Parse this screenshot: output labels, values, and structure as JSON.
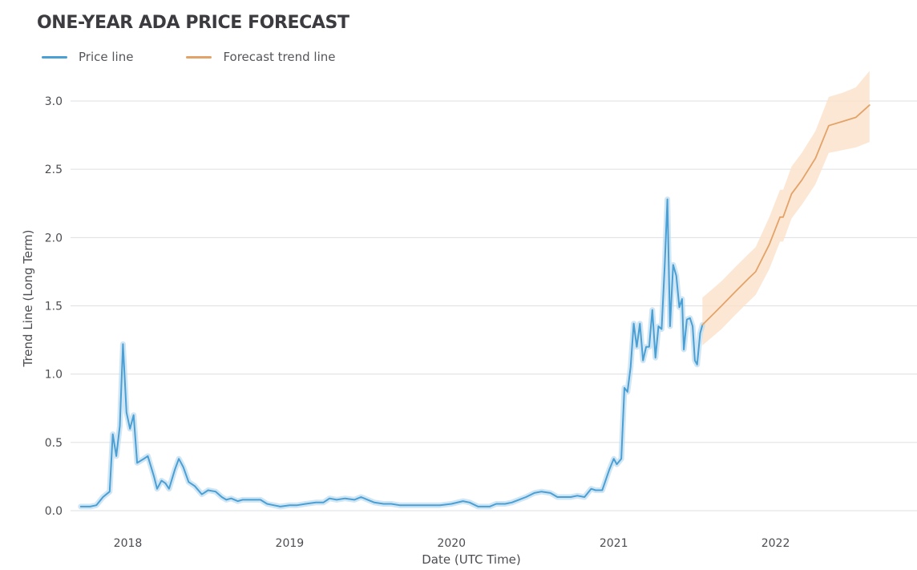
{
  "chart_data": {
    "type": "line",
    "title": "ONE-YEAR ADA PRICE FORECAST",
    "xlabel": "Date (UTC Time)",
    "ylabel": "Trend Line (Long Term)",
    "xlim": [
      "2017-09-15",
      "2022-11-30"
    ],
    "ylim": [
      0,
      3.0
    ],
    "y_ticks": [
      "0.0",
      "0.5",
      "1.0",
      "1.5",
      "2.0",
      "2.5",
      "3.0"
    ],
    "x_ticks": [
      "2018",
      "2019",
      "2020",
      "2021",
      "2022"
    ],
    "grid": "horizontal",
    "legend_placement": "top-left",
    "series": [
      {
        "name": "Price line",
        "color": "#4a9fd4",
        "points": [
          [
            "2017-10-01",
            0.03
          ],
          [
            "2017-10-22",
            0.03
          ],
          [
            "2017-11-05",
            0.04
          ],
          [
            "2017-11-20",
            0.1
          ],
          [
            "2017-12-05",
            0.14
          ],
          [
            "2017-12-12",
            0.56
          ],
          [
            "2017-12-20",
            0.4
          ],
          [
            "2017-12-28",
            0.62
          ],
          [
            "2018-01-04",
            1.22
          ],
          [
            "2018-01-12",
            0.72
          ],
          [
            "2018-01-20",
            0.6
          ],
          [
            "2018-01-28",
            0.7
          ],
          [
            "2018-02-05",
            0.35
          ],
          [
            "2018-02-20",
            0.38
          ],
          [
            "2018-03-01",
            0.4
          ],
          [
            "2018-03-15",
            0.25
          ],
          [
            "2018-03-22",
            0.16
          ],
          [
            "2018-04-01",
            0.22
          ],
          [
            "2018-04-10",
            0.2
          ],
          [
            "2018-04-18",
            0.16
          ],
          [
            "2018-05-01",
            0.3
          ],
          [
            "2018-05-10",
            0.38
          ],
          [
            "2018-05-20",
            0.32
          ],
          [
            "2018-06-01",
            0.21
          ],
          [
            "2018-06-15",
            0.18
          ],
          [
            "2018-07-01",
            0.12
          ],
          [
            "2018-07-15",
            0.15
          ],
          [
            "2018-08-01",
            0.14
          ],
          [
            "2018-08-15",
            0.1
          ],
          [
            "2018-08-25",
            0.08
          ],
          [
            "2018-09-05",
            0.09
          ],
          [
            "2018-09-20",
            0.07
          ],
          [
            "2018-10-01",
            0.08
          ],
          [
            "2018-10-20",
            0.08
          ],
          [
            "2018-11-10",
            0.08
          ],
          [
            "2018-11-25",
            0.05
          ],
          [
            "2018-12-10",
            0.04
          ],
          [
            "2018-12-25",
            0.03
          ],
          [
            "2019-01-15",
            0.04
          ],
          [
            "2019-02-01",
            0.04
          ],
          [
            "2019-02-20",
            0.05
          ],
          [
            "2019-03-15",
            0.06
          ],
          [
            "2019-04-01",
            0.06
          ],
          [
            "2019-04-15",
            0.09
          ],
          [
            "2019-05-01",
            0.08
          ],
          [
            "2019-05-20",
            0.09
          ],
          [
            "2019-06-10",
            0.08
          ],
          [
            "2019-06-25",
            0.1
          ],
          [
            "2019-07-10",
            0.08
          ],
          [
            "2019-07-25",
            0.06
          ],
          [
            "2019-08-15",
            0.05
          ],
          [
            "2019-09-01",
            0.05
          ],
          [
            "2019-09-20",
            0.04
          ],
          [
            "2019-10-15",
            0.04
          ],
          [
            "2019-11-10",
            0.04
          ],
          [
            "2019-12-01",
            0.04
          ],
          [
            "2019-12-20",
            0.04
          ],
          [
            "2020-01-15",
            0.05
          ],
          [
            "2020-02-10",
            0.07
          ],
          [
            "2020-02-25",
            0.06
          ],
          [
            "2020-03-15",
            0.03
          ],
          [
            "2020-04-10",
            0.03
          ],
          [
            "2020-04-25",
            0.05
          ],
          [
            "2020-05-15",
            0.05
          ],
          [
            "2020-05-30",
            0.06
          ],
          [
            "2020-06-15",
            0.08
          ],
          [
            "2020-07-01",
            0.1
          ],
          [
            "2020-07-20",
            0.13
          ],
          [
            "2020-08-05",
            0.14
          ],
          [
            "2020-08-25",
            0.13
          ],
          [
            "2020-09-10",
            0.1
          ],
          [
            "2020-09-25",
            0.1
          ],
          [
            "2020-10-10",
            0.1
          ],
          [
            "2020-10-25",
            0.11
          ],
          [
            "2020-11-10",
            0.1
          ],
          [
            "2020-11-25",
            0.16
          ],
          [
            "2020-12-05",
            0.15
          ],
          [
            "2020-12-20",
            0.15
          ],
          [
            "2021-01-05",
            0.3
          ],
          [
            "2021-01-15",
            0.38
          ],
          [
            "2021-01-22",
            0.34
          ],
          [
            "2021-02-01",
            0.38
          ],
          [
            "2021-02-08",
            0.9
          ],
          [
            "2021-02-15",
            0.87
          ],
          [
            "2021-02-22",
            1.05
          ],
          [
            "2021-03-01",
            1.37
          ],
          [
            "2021-03-08",
            1.2
          ],
          [
            "2021-03-15",
            1.37
          ],
          [
            "2021-03-22",
            1.1
          ],
          [
            "2021-03-29",
            1.2
          ],
          [
            "2021-04-05",
            1.2
          ],
          [
            "2021-04-12",
            1.47
          ],
          [
            "2021-04-19",
            1.12
          ],
          [
            "2021-04-26",
            1.35
          ],
          [
            "2021-05-03",
            1.33
          ],
          [
            "2021-05-10",
            1.8
          ],
          [
            "2021-05-16",
            2.28
          ],
          [
            "2021-05-22",
            1.35
          ],
          [
            "2021-05-29",
            1.8
          ],
          [
            "2021-06-05",
            1.72
          ],
          [
            "2021-06-12",
            1.49
          ],
          [
            "2021-06-18",
            1.55
          ],
          [
            "2021-06-22",
            1.18
          ],
          [
            "2021-06-29",
            1.4
          ],
          [
            "2021-07-06",
            1.41
          ],
          [
            "2021-07-12",
            1.35
          ],
          [
            "2021-07-17",
            1.1
          ],
          [
            "2021-07-22",
            1.07
          ],
          [
            "2021-07-29",
            1.3
          ],
          [
            "2021-08-03",
            1.36
          ]
        ]
      },
      {
        "name": "Forecast trend line",
        "color": "#e3a368",
        "band_color": "#fbe1c9",
        "points": [
          [
            "2021-08-03",
            1.36,
            1.21,
            1.56
          ],
          [
            "2021-09-15",
            1.5,
            1.33,
            1.68
          ],
          [
            "2021-10-15",
            1.6,
            1.43,
            1.78
          ],
          [
            "2021-11-15",
            1.7,
            1.53,
            1.88
          ],
          [
            "2021-12-01",
            1.75,
            1.58,
            1.93
          ],
          [
            "2022-01-01",
            1.95,
            1.77,
            2.15
          ],
          [
            "2022-01-25",
            2.15,
            1.97,
            2.35
          ],
          [
            "2022-02-01",
            2.15,
            1.97,
            2.35
          ],
          [
            "2022-02-20",
            2.32,
            2.14,
            2.52
          ],
          [
            "2022-03-15",
            2.42,
            2.24,
            2.62
          ],
          [
            "2022-04-15",
            2.58,
            2.39,
            2.78
          ],
          [
            "2022-05-15",
            2.82,
            2.62,
            3.03
          ],
          [
            "2022-06-15",
            2.85,
            2.64,
            3.06
          ],
          [
            "2022-07-15",
            2.88,
            2.66,
            3.1
          ],
          [
            "2022-08-15",
            2.97,
            2.7,
            3.22
          ]
        ]
      }
    ]
  }
}
